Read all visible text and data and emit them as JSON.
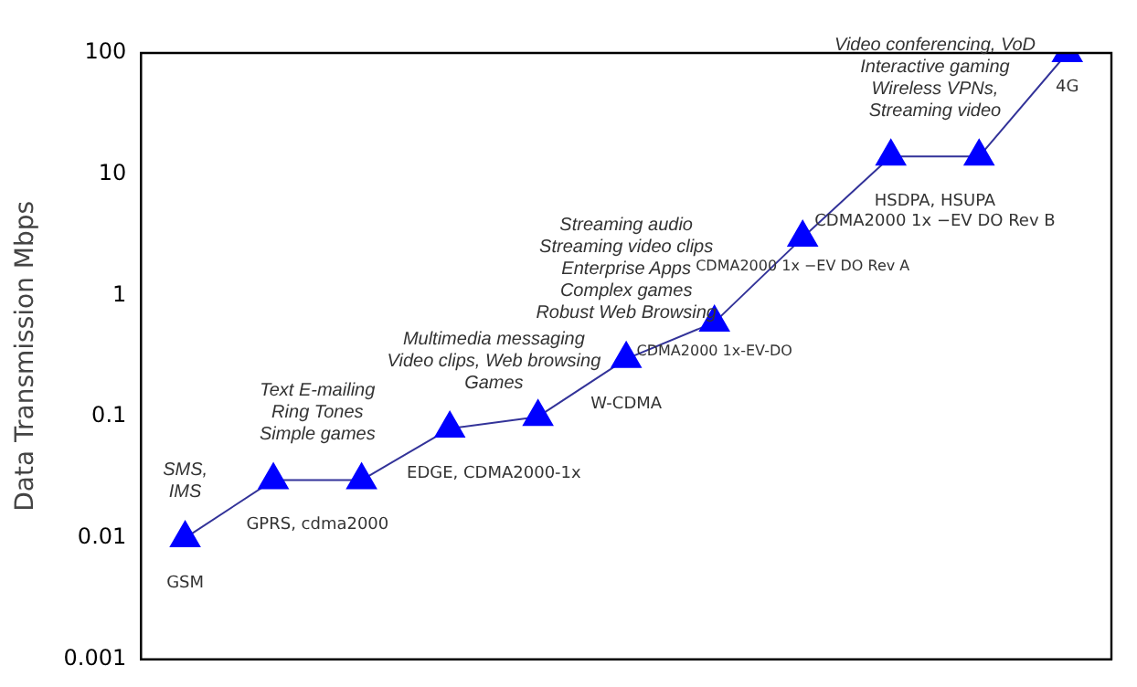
{
  "chart_data": {
    "type": "line",
    "ylabel": "Data Transmission Mbps",
    "categories": [
      null,
      null,
      null,
      null,
      null,
      null,
      null,
      null,
      null,
      null,
      null
    ],
    "series": [
      {
        "color": "#0000ff",
        "values": [
          0.01,
          0.03,
          0.03,
          0.08,
          0.1,
          0.3,
          0.6,
          3,
          14,
          14,
          100
        ]
      }
    ],
    "log": "y",
    "ylim": [
      0.001,
      100
    ],
    "yticks": [
      0.001,
      0.01,
      0.1,
      1,
      10,
      100
    ],
    "marker": "triangle",
    "line_style": "solid",
    "grid": false,
    "legend": false,
    "tick_labels": "y",
    "annotations": [
      {
        "text": "GSM",
        "y": 0.01
      },
      {
        "text": "GPRS, cdma2000",
        "y": 0.03
      },
      {
        "text": "EDGE, CDMA2000-1x",
        "y": 0.08
      },
      {
        "text": "W-CDMA",
        "y": 0.3
      },
      {
        "text": "CDMA2000 1x-EV-DO",
        "y": 0.6
      },
      {
        "text": "CDMA2000 1x −EV DO Rev A",
        "y": 3
      },
      {
        "text": "HSDPA, HSUPA\nCDMA2000 1x −EV DO Rev B",
        "y": 14
      },
      {
        "text": "4G",
        "y": 100
      },
      {
        "text": "SMS,\nIMS",
        "y": 0.01
      },
      {
        "text": "Text E-mailing\nRing Tones\nSimple games",
        "y": 0.03
      },
      {
        "text": "Multimedia messaging\nVideo clips, Web browsing\nGames",
        "y": 0.08
      },
      {
        "text": "Streaming audio\nStreaming video clips\nEnterprise Apps\nComplex games\nRobust Web Browsing",
        "y": 0.3
      },
      {
        "text": "Video conferencing, VoD\nInteractive gaming\nWireless VPNs,\nStreaming video",
        "y": 14
      }
    ]
  }
}
